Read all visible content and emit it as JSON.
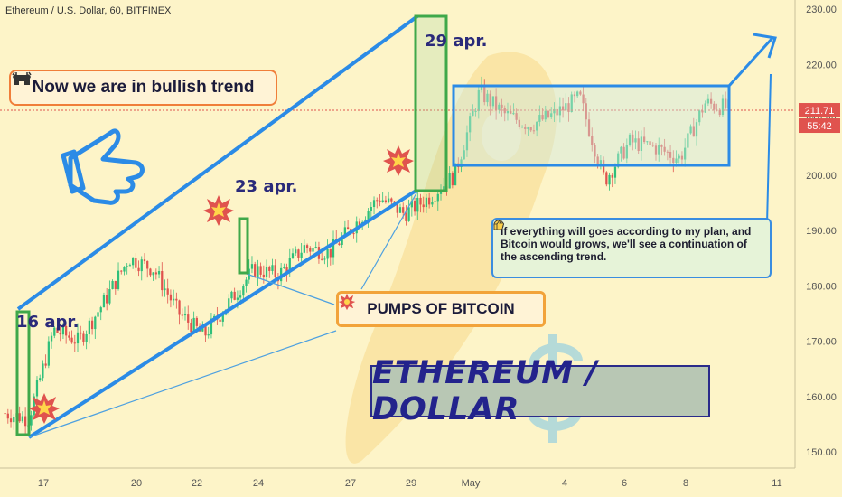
{
  "header": {
    "symbol_line": "Ethereum / U.S. Dollar, 60, BITFINEX"
  },
  "annotations": {
    "bullish_text": "Now we are in bullish trend",
    "pumps_text": "PUMPS OF BITCOIN",
    "note_text": "If everything will goes according to my plan, and Bitcoin would grows, we'll see a continuation of the ascending trend.",
    "title_text": "ETHEREUM / DOLLAR",
    "date_16": "16 apr.",
    "date_23": "23 apr.",
    "date_29": "29 apr."
  },
  "price_labels": {
    "current_price": "211.71",
    "timer": "55:42"
  },
  "colors": {
    "background": "#fdf4c8",
    "up_candle": "#2fbf7a",
    "down_candle": "#e0534e",
    "channel_line": "#2b8be6",
    "highlight_green": "#3fa84a",
    "current_price": "#e0534e"
  },
  "chart_data": {
    "type": "candlestick",
    "title": "Ethereum / U.S. Dollar, 60, BITFINEX",
    "xlabel": "",
    "ylabel": "",
    "ylim": [
      147,
      232
    ],
    "y_ticks": [
      150,
      160,
      170,
      180,
      190,
      200,
      210,
      220,
      230
    ],
    "x_ticks": [
      "17",
      "20",
      "22",
      "24",
      "27",
      "29",
      "May",
      "4",
      "6",
      "8",
      "11"
    ],
    "current_price": 211.71,
    "series": [
      {
        "points": [
          {
            "x": "15 apr",
            "y": 157
          },
          {
            "x": "16 apr",
            "y": 156
          },
          {
            "x": "16 apr",
            "y": 172
          },
          {
            "x": "17 apr",
            "y": 170
          },
          {
            "x": "18 apr",
            "y": 177
          },
          {
            "x": "19 apr",
            "y": 185
          },
          {
            "x": "20 apr",
            "y": 183
          },
          {
            "x": "20 apr",
            "y": 175
          },
          {
            "x": "21 apr",
            "y": 171
          },
          {
            "x": "22 apr",
            "y": 177
          },
          {
            "x": "22 apr",
            "y": 183
          },
          {
            "x": "23 apr",
            "y": 182
          },
          {
            "x": "23 apr",
            "y": 187
          },
          {
            "x": "24 apr",
            "y": 186
          },
          {
            "x": "25 apr",
            "y": 191
          },
          {
            "x": "26 apr",
            "y": 196
          },
          {
            "x": "27 apr",
            "y": 193
          },
          {
            "x": "28 apr",
            "y": 196
          },
          {
            "x": "29 apr",
            "y": 200
          },
          {
            "x": "29 apr",
            "y": 215
          },
          {
            "x": "30 apr",
            "y": 211
          },
          {
            "x": "1 may",
            "y": 209
          },
          {
            "x": "2 may",
            "y": 211
          },
          {
            "x": "3 may",
            "y": 214
          },
          {
            "x": "4 may",
            "y": 199
          },
          {
            "x": "5 may",
            "y": 206
          },
          {
            "x": "6 may",
            "y": 205
          },
          {
            "x": "7 may",
            "y": 203
          },
          {
            "x": "8 may",
            "y": 213
          },
          {
            "x": "9 may",
            "y": 212
          }
        ]
      }
    ]
  }
}
